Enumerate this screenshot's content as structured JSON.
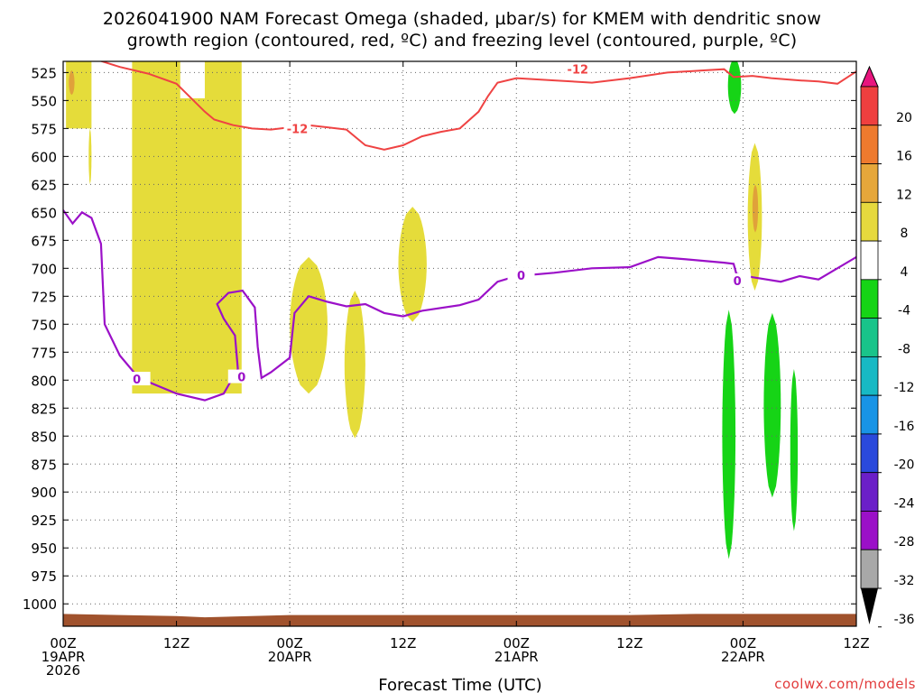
{
  "header": {
    "title_line1": "2026041900 NAM Forecast Omega (shaded, µbar/s) for KMEM with dendritic snow",
    "title_line2": "growth region (contoured, red, ºC) and freezing level (contoured, purple, ºC)"
  },
  "credit": "coolwx.com/models",
  "colors": {
    "omega_4_8": "#e5dc3a",
    "omega_8_12": "#e0a13a",
    "omega_neg4_neg8": "#16d416",
    "dgz_contour": "#ef4343",
    "freezing_contour": "#9b10c8",
    "terrain": "#a0522d"
  },
  "chart_data": {
    "type": "time-height contour",
    "xlabel": "Forecast Time (UTC)",
    "ylabel": "",
    "x_unit": "hours from 2026-04-19 00Z",
    "xlim": [
      0,
      84
    ],
    "y_unit": "hPa",
    "ylim": [
      1020,
      515
    ],
    "y_ticks": [
      525,
      550,
      575,
      600,
      625,
      650,
      675,
      700,
      725,
      750,
      775,
      800,
      825,
      850,
      875,
      900,
      925,
      950,
      975,
      1000
    ],
    "x_ticks": [
      {
        "hour": 0,
        "lines": [
          "00Z",
          "19APR",
          "2026"
        ]
      },
      {
        "hour": 12,
        "lines": [
          "12Z"
        ]
      },
      {
        "hour": 24,
        "lines": [
          "00Z",
          "20APR"
        ]
      },
      {
        "hour": 36,
        "lines": [
          "12Z"
        ]
      },
      {
        "hour": 48,
        "lines": [
          "00Z",
          "21APR"
        ]
      },
      {
        "hour": 60,
        "lines": [
          "12Z"
        ]
      },
      {
        "hour": 72,
        "lines": [
          "00Z",
          "22APR"
        ]
      },
      {
        "hour": 84,
        "lines": [
          "12Z"
        ]
      }
    ],
    "grid": "dotted",
    "colorbar": {
      "labels": [
        "20",
        "16",
        "12",
        "8",
        "4",
        "-4",
        "-8",
        "-12",
        "-16",
        "-20",
        "-24",
        "-28",
        "-32",
        "-36"
      ],
      "colors": [
        "#ef3f3f",
        "#ee7a2e",
        "#e6a73a",
        "#e6d93d",
        "#ffffff",
        "#16d416",
        "#19c48a",
        "#17b9c4",
        "#1894e6",
        "#2a49dc",
        "#6b1fc8",
        "#9b10c8",
        "#a8a8a8"
      ],
      "top_arrow": "#e8157e",
      "bottom_arrow": "#000000"
    },
    "contour_labels": {
      "dgz": "-12",
      "freezing": "0"
    },
    "dgz_line": [
      [
        0,
        512
      ],
      [
        3,
        512
      ],
      [
        6,
        520
      ],
      [
        9,
        526
      ],
      [
        12,
        535
      ],
      [
        15,
        560
      ],
      [
        16,
        567
      ],
      [
        18,
        572
      ],
      [
        20,
        575
      ],
      [
        22,
        576
      ],
      [
        24,
        574
      ],
      [
        26,
        572
      ],
      [
        28,
        574
      ],
      [
        30,
        576
      ],
      [
        32,
        590
      ],
      [
        34,
        594
      ],
      [
        36,
        590
      ],
      [
        38,
        582
      ],
      [
        40,
        578
      ],
      [
        42,
        575
      ],
      [
        44,
        560
      ],
      [
        45,
        546
      ],
      [
        46,
        534
      ],
      [
        48,
        530
      ],
      [
        52,
        532
      ],
      [
        56,
        534
      ],
      [
        60,
        530
      ],
      [
        64,
        525
      ],
      [
        68,
        523
      ],
      [
        70,
        522
      ],
      [
        71,
        529
      ],
      [
        73,
        528
      ],
      [
        75,
        530
      ],
      [
        78,
        532
      ],
      [
        80,
        533
      ],
      [
        82,
        535
      ],
      [
        84,
        524
      ]
    ],
    "freezing_line": [
      [
        0,
        648
      ],
      [
        1,
        660
      ],
      [
        2,
        650
      ],
      [
        3,
        655
      ],
      [
        4,
        678
      ],
      [
        4.4,
        750
      ],
      [
        6,
        778
      ],
      [
        8,
        798
      ],
      [
        10,
        805
      ],
      [
        12,
        812
      ],
      [
        15,
        818
      ],
      [
        17,
        812
      ],
      [
        18.5,
        790
      ],
      [
        18.2,
        760
      ],
      [
        17,
        745
      ],
      [
        16.3,
        732
      ],
      [
        17.5,
        722
      ],
      [
        19,
        720
      ],
      [
        20.3,
        735
      ],
      [
        20.6,
        770
      ],
      [
        21,
        798
      ],
      [
        22,
        793
      ],
      [
        24,
        780
      ],
      [
        24.5,
        740
      ],
      [
        26,
        725
      ],
      [
        28,
        730
      ],
      [
        30,
        734
      ],
      [
        32,
        732
      ],
      [
        34,
        740
      ],
      [
        36,
        743
      ],
      [
        38,
        738
      ],
      [
        42,
        733
      ],
      [
        44,
        728
      ],
      [
        46,
        712
      ],
      [
        48,
        707
      ],
      [
        52,
        704
      ],
      [
        56,
        700
      ],
      [
        60,
        699
      ],
      [
        63,
        690
      ],
      [
        66,
        692
      ],
      [
        70,
        695
      ],
      [
        71,
        696
      ],
      [
        71.3,
        705
      ],
      [
        73,
        708
      ],
      [
        76,
        712
      ],
      [
        78,
        707
      ],
      [
        80,
        710
      ],
      [
        84,
        690
      ]
    ],
    "omega_positive_areas": [
      {
        "range": "4 to 8",
        "hours": [
          0.3,
          3
        ],
        "pressure": [
          512,
          575
        ]
      },
      {
        "range": "4 to 8",
        "hours": [
          2.7,
          3
        ],
        "pressure": [
          575,
          625
        ]
      },
      {
        "range": "4 to 8",
        "hours": [
          7.3,
          18.9
        ],
        "pressure": [
          512,
          812
        ]
      },
      {
        "range": "4 to 8",
        "hours": [
          24.0,
          28.0
        ],
        "pressure": [
          690,
          812
        ]
      },
      {
        "range": "4 to 8",
        "hours": [
          29.8,
          32.0
        ],
        "pressure": [
          720,
          852
        ]
      },
      {
        "range": "4 to 8",
        "hours": [
          35.5,
          38.5
        ],
        "pressure": [
          645,
          748
        ]
      },
      {
        "range": "4 to 8",
        "hours": [
          72.5,
          74.0
        ],
        "pressure": [
          588,
          720
        ]
      },
      {
        "range": "8 to 12",
        "hours": [
          0.6,
          1.2
        ],
        "pressure": [
          523,
          545
        ]
      },
      {
        "range": "8 to 12",
        "hours": [
          73.0,
          73.6
        ],
        "pressure": [
          625,
          668
        ]
      }
    ],
    "omega_negative_areas": [
      {
        "range": "-4 to -8",
        "hours": [
          70.4,
          71.8
        ],
        "pressure": [
          512,
          562
        ]
      },
      {
        "range": "-4 to -8",
        "hours": [
          69.8,
          71.2
        ],
        "pressure": [
          737,
          960
        ]
      },
      {
        "range": "-4 to -8",
        "hours": [
          74.2,
          76.0
        ],
        "pressure": [
          740,
          905
        ]
      },
      {
        "range": "-4 to -8",
        "hours": [
          77.0,
          77.8
        ],
        "pressure": [
          790,
          935
        ]
      }
    ],
    "terrain_surface": [
      [
        0,
        1009
      ],
      [
        12,
        1011
      ],
      [
        15,
        1012
      ],
      [
        24,
        1010
      ],
      [
        36,
        1010
      ],
      [
        48,
        1010
      ],
      [
        60,
        1010
      ],
      [
        67,
        1009
      ],
      [
        72,
        1009
      ],
      [
        84,
        1009
      ]
    ]
  }
}
